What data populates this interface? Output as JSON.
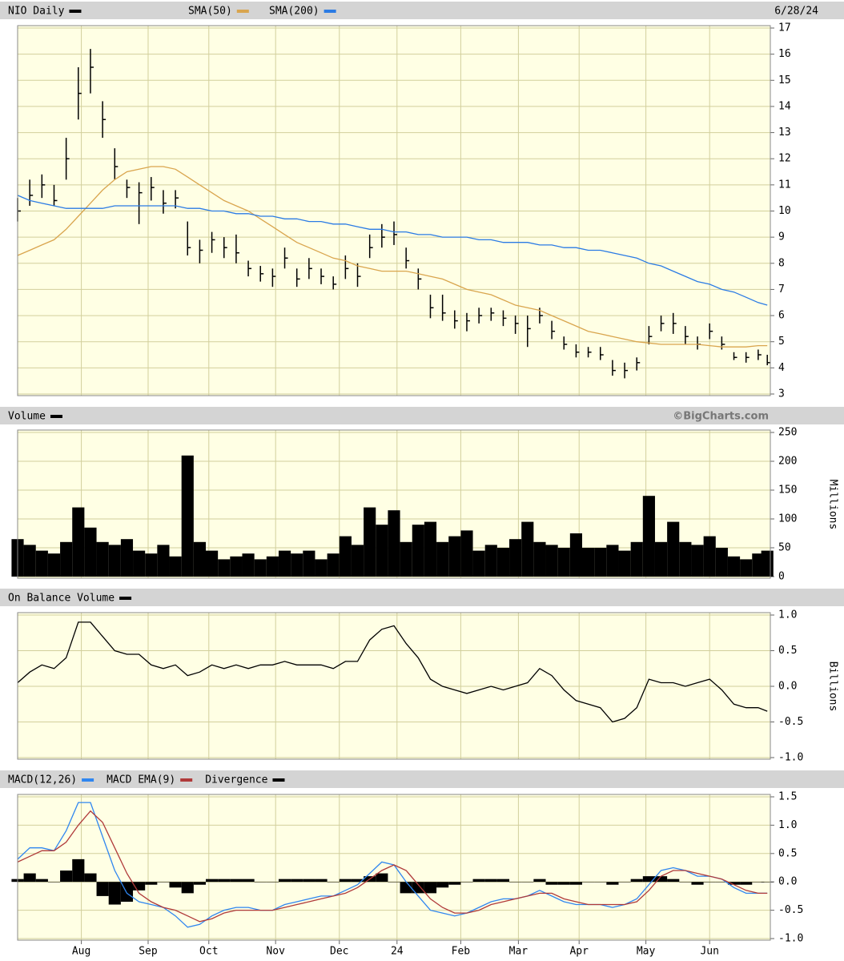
{
  "chart_data": [
    {
      "type": "hlc",
      "date_label": "6/28/24",
      "ylim": [
        3,
        17
      ],
      "yticks": [
        3,
        4,
        5,
        6,
        7,
        8,
        9,
        10,
        11,
        12,
        13,
        14,
        15,
        16,
        17
      ],
      "grid": true,
      "series": [
        {
          "name": "NIO Daily",
          "color": "#000000",
          "values": [
            10.0,
            10.6,
            11.0,
            10.4,
            12.0,
            14.5,
            15.5,
            13.5,
            11.7,
            10.9,
            10.7,
            10.9,
            10.3,
            10.5,
            8.6,
            8.5,
            8.9,
            8.6,
            8.4,
            7.8,
            7.6,
            7.5,
            8.2,
            7.4,
            7.8,
            7.5,
            7.2,
            7.8,
            7.5,
            8.6,
            9.0,
            9.1,
            8.1,
            7.4,
            6.3,
            6.1,
            5.8,
            5.8,
            6.0,
            6.1,
            5.9,
            5.7,
            5.5,
            6.0,
            5.4,
            4.9,
            4.6,
            4.6,
            4.5,
            3.9,
            3.9,
            4.2,
            5.2,
            5.7,
            5.7,
            5.2,
            4.9,
            5.4,
            4.9,
            4.4,
            4.4,
            4.5,
            4.2
          ],
          "high": [
            10.5,
            11.2,
            11.4,
            11.0,
            12.8,
            15.5,
            16.2,
            14.2,
            12.4,
            11.2,
            11.1,
            11.3,
            10.8,
            10.8,
            9.6,
            8.9,
            9.2,
            9.0,
            9.1,
            8.1,
            7.9,
            7.8,
            8.6,
            7.8,
            8.2,
            7.8,
            7.5,
            8.3,
            8.0,
            9.1,
            9.5,
            9.6,
            8.6,
            7.8,
            6.8,
            6.8,
            6.2,
            6.1,
            6.3,
            6.3,
            6.2,
            6.0,
            6.0,
            6.3,
            5.8,
            5.2,
            4.9,
            4.8,
            4.8,
            4.3,
            4.2,
            4.4,
            5.6,
            6.0,
            6.1,
            5.6,
            5.2,
            5.7,
            5.2,
            4.6,
            4.6,
            4.7,
            4.5
          ],
          "low": [
            9.6,
            10.2,
            10.5,
            10.2,
            11.2,
            13.5,
            14.5,
            12.8,
            11.2,
            10.5,
            9.5,
            10.4,
            9.9,
            10.1,
            8.3,
            8.0,
            8.4,
            8.2,
            8.0,
            7.5,
            7.3,
            7.1,
            7.8,
            7.1,
            7.4,
            7.2,
            7.0,
            7.4,
            7.1,
            8.2,
            8.6,
            8.7,
            7.8,
            7.0,
            5.9,
            5.8,
            5.5,
            5.4,
            5.7,
            5.8,
            5.6,
            5.3,
            4.8,
            5.7,
            5.1,
            4.7,
            4.4,
            4.4,
            4.3,
            3.7,
            3.6,
            3.9,
            4.9,
            5.4,
            5.3,
            4.9,
            4.7,
            5.1,
            4.7,
            4.3,
            4.2,
            4.3,
            4.1
          ]
        },
        {
          "name": "SMA(50)",
          "color": "#d9a54e",
          "values": [
            8.3,
            8.5,
            8.7,
            8.9,
            9.3,
            9.8,
            10.3,
            10.8,
            11.2,
            11.5,
            11.6,
            11.7,
            11.7,
            11.6,
            11.3,
            11.0,
            10.7,
            10.4,
            10.2,
            10.0,
            9.7,
            9.4,
            9.1,
            8.8,
            8.6,
            8.4,
            8.2,
            8.1,
            7.9,
            7.8,
            7.7,
            7.7,
            7.7,
            7.6,
            7.5,
            7.4,
            7.2,
            7.0,
            6.9,
            6.8,
            6.6,
            6.4,
            6.3,
            6.2,
            6.0,
            5.8,
            5.6,
            5.4,
            5.3,
            5.2,
            5.1,
            5.0,
            4.95,
            4.9,
            4.9,
            4.9,
            4.9,
            4.85,
            4.8,
            4.8,
            4.8,
            4.85,
            4.85
          ]
        },
        {
          "name": "SMA(200)",
          "color": "#2b7be4",
          "values": [
            10.6,
            10.4,
            10.3,
            10.2,
            10.1,
            10.1,
            10.1,
            10.1,
            10.2,
            10.2,
            10.2,
            10.2,
            10.2,
            10.2,
            10.1,
            10.1,
            10.0,
            10.0,
            9.9,
            9.9,
            9.8,
            9.8,
            9.7,
            9.7,
            9.6,
            9.6,
            9.5,
            9.5,
            9.4,
            9.3,
            9.3,
            9.2,
            9.2,
            9.1,
            9.1,
            9.0,
            9.0,
            9.0,
            8.9,
            8.9,
            8.8,
            8.8,
            8.8,
            8.7,
            8.7,
            8.6,
            8.6,
            8.5,
            8.5,
            8.4,
            8.3,
            8.2,
            8.0,
            7.9,
            7.7,
            7.5,
            7.3,
            7.2,
            7.0,
            6.9,
            6.7,
            6.5,
            6.4
          ]
        }
      ]
    },
    {
      "type": "bar",
      "watermark": "©BigCharts.com",
      "y_label": "Millions",
      "ylim": [
        0,
        250
      ],
      "yticks": [
        0,
        50,
        100,
        150,
        200,
        250
      ],
      "grid": true,
      "series": [
        {
          "name": "Volume",
          "color": "#000000",
          "values": [
            65,
            55,
            45,
            40,
            60,
            120,
            85,
            60,
            55,
            65,
            45,
            40,
            55,
            35,
            210,
            60,
            45,
            30,
            35,
            40,
            30,
            35,
            45,
            40,
            45,
            30,
            40,
            70,
            55,
            120,
            90,
            115,
            60,
            90,
            95,
            60,
            70,
            80,
            45,
            55,
            50,
            65,
            95,
            60,
            55,
            50,
            75,
            50,
            50,
            55,
            45,
            60,
            140,
            60,
            95,
            60,
            55,
            70,
            50,
            35,
            30,
            40,
            45
          ]
        }
      ]
    },
    {
      "type": "line",
      "y_label": "Billions",
      "ylim": [
        -1,
        1
      ],
      "yticks": [
        {
          "value": -1,
          "label": "-1.0"
        },
        -0.5,
        {
          "value": 0,
          "label": "0.0"
        },
        0.5,
        {
          "value": 1,
          "label": "1.0"
        }
      ],
      "grid": true,
      "series": [
        {
          "name": "On Balance Volume",
          "color": "#000000",
          "values": [
            0.05,
            0.2,
            0.3,
            0.25,
            0.4,
            0.9,
            0.9,
            0.7,
            0.5,
            0.45,
            0.45,
            0.3,
            0.25,
            0.3,
            0.15,
            0.2,
            0.3,
            0.25,
            0.3,
            0.25,
            0.3,
            0.3,
            0.35,
            0.3,
            0.3,
            0.3,
            0.25,
            0.35,
            0.35,
            0.65,
            0.8,
            0.85,
            0.6,
            0.4,
            0.1,
            0.0,
            -0.05,
            -0.1,
            -0.05,
            0.0,
            -0.05,
            0.0,
            0.05,
            0.25,
            0.15,
            -0.05,
            -0.2,
            -0.25,
            -0.3,
            -0.5,
            -0.45,
            -0.3,
            0.1,
            0.05,
            0.05,
            0.0,
            0.05,
            0.1,
            -0.05,
            -0.25,
            -0.3,
            -0.3,
            -0.35
          ]
        }
      ]
    },
    {
      "type": "line",
      "ylim": [
        -1,
        1.5
      ],
      "yticks": [
        {
          "value": -1,
          "label": "-1.0"
        },
        -0.5,
        {
          "value": 0,
          "label": "0.0"
        },
        0.5,
        {
          "value": 1,
          "label": "1.0"
        },
        1.5
      ],
      "grid": true,
      "x": [
        0,
        4,
        8,
        12,
        16,
        20,
        24,
        28,
        32,
        36,
        40,
        44,
        48,
        52,
        56,
        60,
        64,
        68,
        72,
        76,
        80,
        84,
        88,
        92,
        96,
        100,
        104,
        108,
        112,
        116,
        120,
        124,
        128,
        132,
        136,
        140,
        144,
        148,
        152,
        156,
        160,
        164,
        168,
        172,
        176,
        180,
        184,
        188,
        192,
        196,
        200,
        204,
        208,
        212,
        216,
        220,
        224,
        228,
        232,
        236,
        240,
        244,
        247
      ],
      "xlim": [
        0,
        248
      ],
      "xticks": [
        {
          "value": 21,
          "label": "Aug"
        },
        {
          "value": 43,
          "label": "Sep"
        },
        {
          "value": 63,
          "label": "Oct"
        },
        {
          "value": 85,
          "label": "Nov"
        },
        {
          "value": 106,
          "label": "Dec"
        },
        {
          "value": 125,
          "label": "24"
        },
        {
          "value": 146,
          "label": "Feb"
        },
        {
          "value": 165,
          "label": "Mar"
        },
        {
          "value": 185,
          "label": "Apr"
        },
        {
          "value": 207,
          "label": "May"
        },
        {
          "value": 228,
          "label": "Jun"
        }
      ],
      "series": [
        {
          "name": "MACD(12,26)",
          "color": "#2f86f0",
          "values": [
            0.4,
            0.6,
            0.6,
            0.55,
            0.9,
            1.4,
            1.4,
            0.8,
            0.2,
            -0.2,
            -0.35,
            -0.4,
            -0.45,
            -0.6,
            -0.8,
            -0.75,
            -0.6,
            -0.5,
            -0.45,
            -0.45,
            -0.5,
            -0.5,
            -0.4,
            -0.35,
            -0.3,
            -0.25,
            -0.25,
            -0.15,
            -0.05,
            0.15,
            0.35,
            0.3,
            0.0,
            -0.25,
            -0.5,
            -0.55,
            -0.6,
            -0.55,
            -0.45,
            -0.35,
            -0.3,
            -0.3,
            -0.25,
            -0.15,
            -0.25,
            -0.35,
            -0.4,
            -0.4,
            -0.4,
            -0.45,
            -0.4,
            -0.3,
            -0.05,
            0.2,
            0.25,
            0.2,
            0.1,
            0.1,
            0.05,
            -0.1,
            -0.2,
            -0.2,
            -0.2
          ]
        },
        {
          "name": "MACD EMA(9)",
          "color": "#b03a3a",
          "values": [
            0.35,
            0.45,
            0.55,
            0.55,
            0.7,
            1.0,
            1.25,
            1.05,
            0.6,
            0.15,
            -0.2,
            -0.35,
            -0.45,
            -0.5,
            -0.6,
            -0.7,
            -0.65,
            -0.55,
            -0.5,
            -0.5,
            -0.5,
            -0.5,
            -0.45,
            -0.4,
            -0.35,
            -0.3,
            -0.25,
            -0.2,
            -0.1,
            0.05,
            0.2,
            0.3,
            0.2,
            -0.05,
            -0.3,
            -0.45,
            -0.55,
            -0.55,
            -0.5,
            -0.4,
            -0.35,
            -0.3,
            -0.25,
            -0.2,
            -0.2,
            -0.3,
            -0.35,
            -0.4,
            -0.4,
            -0.4,
            -0.4,
            -0.35,
            -0.15,
            0.1,
            0.2,
            0.2,
            0.15,
            0.1,
            0.05,
            -0.05,
            -0.15,
            -0.2,
            -0.2
          ]
        },
        {
          "name": "Divergence",
          "color": "#000000",
          "style": "histogram",
          "values": [
            0.05,
            0.15,
            0.05,
            0,
            0.2,
            0.4,
            0.15,
            -0.25,
            -0.4,
            -0.35,
            -0.15,
            -0.05,
            0,
            -0.1,
            -0.2,
            -0.05,
            0.05,
            0.05,
            0.05,
            0.05,
            0,
            0,
            0.05,
            0.05,
            0.05,
            0.05,
            0,
            0.05,
            0.05,
            0.1,
            0.15,
            0,
            -0.2,
            -0.2,
            -0.2,
            -0.1,
            -0.05,
            0,
            0.05,
            0.05,
            0.05,
            0,
            0,
            0.05,
            -0.05,
            -0.05,
            -0.05,
            0,
            0,
            -0.05,
            0,
            0.05,
            0.1,
            0.1,
            0.05,
            0,
            -0.05,
            0,
            0,
            -0.05,
            -0.05,
            0,
            0
          ]
        }
      ]
    }
  ]
}
